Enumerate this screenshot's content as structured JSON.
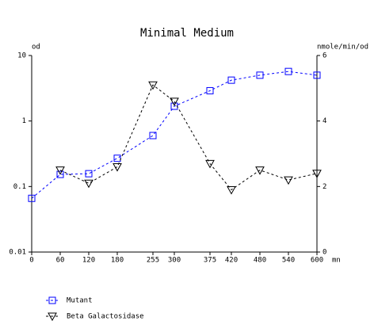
{
  "chart_data": {
    "type": "line",
    "title": "Minimal Medium",
    "y_label": "od",
    "y2_label": "nmole/min/od",
    "x_label": "mn",
    "x": [
      0,
      60,
      120,
      180,
      255,
      300,
      375,
      420,
      480,
      540,
      600
    ],
    "xlim": [
      0,
      600
    ],
    "xticks": [
      0,
      60,
      120,
      180,
      255,
      300,
      375,
      420,
      480,
      540,
      600
    ],
    "ylim": [
      0.01,
      10
    ],
    "yticks": [
      0.01,
      0.1,
      1,
      10
    ],
    "yscale": "log",
    "y2lim": [
      0,
      6
    ],
    "y2ticks": [
      0,
      2,
      4,
      6
    ],
    "series": [
      {
        "name": "Mutant",
        "color": "#0000ff",
        "marker": "square",
        "axis": "y",
        "values": [
          0.066,
          0.153,
          0.157,
          0.27,
          0.6,
          1.68,
          2.9,
          4.2,
          5.0,
          5.7,
          5.0
        ]
      },
      {
        "name": "Beta Galactosidase",
        "color": "#000000",
        "marker": "triangle-down",
        "axis": "y2",
        "values": [
          null,
          2.5,
          2.1,
          2.6,
          5.1,
          4.6,
          2.7,
          1.9,
          2.5,
          2.2,
          2.4
        ]
      }
    ]
  }
}
